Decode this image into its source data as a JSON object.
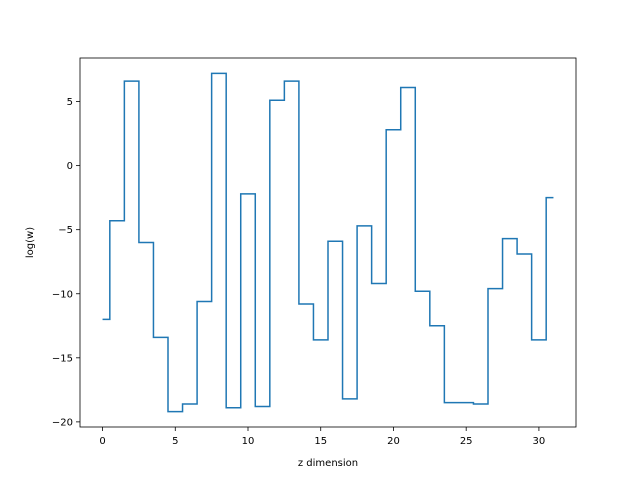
{
  "chart_data": {
    "type": "line",
    "drawstyle": "steps-mid",
    "title": "",
    "xlabel": "z dimension",
    "ylabel": "log(w)",
    "xlim": [
      -1.55,
      32.55
    ],
    "ylim": [
      -20.4,
      8.4
    ],
    "xticks": [
      0,
      5,
      10,
      15,
      20,
      25,
      30
    ],
    "yticks": [
      -20,
      -15,
      -10,
      -5,
      0,
      5
    ],
    "grid": false,
    "line_color": "#1f77b4",
    "x": [
      0,
      1,
      2,
      3,
      4,
      5,
      6,
      7,
      8,
      9,
      10,
      11,
      12,
      13,
      14,
      15,
      16,
      17,
      18,
      19,
      20,
      21,
      22,
      23,
      24,
      25,
      26,
      27,
      28,
      29,
      30,
      31
    ],
    "y": [
      -12.0,
      -4.3,
      6.6,
      -6.0,
      -13.4,
      -19.2,
      -18.6,
      -10.6,
      7.2,
      -18.9,
      -2.2,
      -18.8,
      5.1,
      6.6,
      -10.8,
      -13.6,
      -5.9,
      -18.2,
      -4.7,
      -9.2,
      2.8,
      6.1,
      -9.8,
      -12.5,
      -18.5,
      -18.5,
      -18.6,
      -9.6,
      -5.7,
      -6.9,
      -13.6,
      -2.5
    ]
  }
}
